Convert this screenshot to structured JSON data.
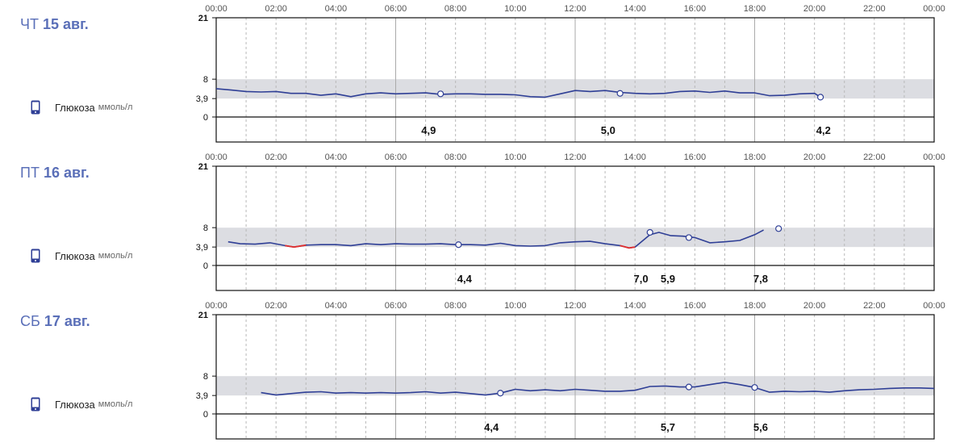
{
  "unit_label": "ммоль/л",
  "series_label": "Глюкоза",
  "colors": {
    "line": "#2f3f96",
    "range": "#dcdde2",
    "low": "#e03030",
    "title": "#5a6fb8"
  },
  "chart_data": [
    {
      "type": "line",
      "dow": "ЧТ",
      "date": "15 авг.",
      "x_ticks": [
        "00:00",
        "02:00",
        "04:00",
        "06:00",
        "08:00",
        "10:00",
        "12:00",
        "14:00",
        "16:00",
        "18:00",
        "20:00",
        "22:00",
        "00:00"
      ],
      "y_ticks": [
        "21",
        "8",
        "3,9",
        "0"
      ],
      "ylim": [
        0,
        21
      ],
      "xlim": [
        0,
        24
      ],
      "target_range": [
        3.9,
        8
      ],
      "series": [
        {
          "points": [
            [
              0,
              6.0
            ],
            [
              0.5,
              5.7
            ],
            [
              1,
              5.4
            ],
            [
              1.5,
              5.3
            ],
            [
              2,
              5.4
            ],
            [
              2.5,
              5.0
            ],
            [
              3,
              5.0
            ],
            [
              3.5,
              4.6
            ],
            [
              4,
              4.9
            ],
            [
              4.5,
              4.3
            ],
            [
              5,
              4.9
            ],
            [
              5.5,
              5.1
            ],
            [
              6,
              4.9
            ],
            [
              6.5,
              5.0
            ],
            [
              7,
              5.1
            ],
            [
              7.5,
              4.8
            ],
            [
              8,
              4.9
            ],
            [
              8.5,
              4.9
            ],
            [
              9,
              4.8
            ],
            [
              9.5,
              4.8
            ],
            [
              10,
              4.7
            ],
            [
              10.5,
              4.3
            ],
            [
              11,
              4.2
            ],
            [
              11.5,
              4.9
            ],
            [
              12,
              5.6
            ],
            [
              12.5,
              5.4
            ],
            [
              13,
              5.6
            ],
            [
              13.5,
              5.2
            ],
            [
              14,
              5.0
            ],
            [
              14.5,
              4.9
            ],
            [
              15,
              5.0
            ],
            [
              15.5,
              5.4
            ],
            [
              16,
              5.5
            ],
            [
              16.5,
              5.2
            ],
            [
              17,
              5.5
            ],
            [
              17.5,
              5.1
            ],
            [
              18,
              5.1
            ],
            [
              18.5,
              4.5
            ],
            [
              19,
              4.6
            ],
            [
              19.5,
              4.9
            ],
            [
              20,
              5.0
            ],
            [
              20.2,
              4.2
            ]
          ]
        }
      ],
      "markers": [
        [
          7.5,
          4.9
        ],
        [
          13.5,
          5.0
        ],
        [
          20.2,
          4.2
        ]
      ],
      "low_segments": [],
      "values": [
        {
          "t": 7.1,
          "label": "4,9"
        },
        {
          "t": 13.1,
          "label": "5,0"
        },
        {
          "t": 20.3,
          "label": "4,2"
        }
      ]
    },
    {
      "type": "line",
      "dow": "ПТ",
      "date": "16 авг.",
      "x_ticks": [
        "00:00",
        "02:00",
        "04:00",
        "06:00",
        "08:00",
        "10:00",
        "12:00",
        "14:00",
        "16:00",
        "18:00",
        "20:00",
        "22:00",
        "00:00"
      ],
      "y_ticks": [
        "21",
        "8",
        "3,9",
        "0"
      ],
      "ylim": [
        0,
        21
      ],
      "xlim": [
        0,
        24
      ],
      "target_range": [
        3.9,
        8
      ],
      "series": [
        {
          "points": [
            [
              0.4,
              5.0
            ],
            [
              0.8,
              4.6
            ],
            [
              1.3,
              4.5
            ],
            [
              1.8,
              4.8
            ],
            [
              2.3,
              4.2
            ],
            [
              2.6,
              3.9
            ],
            [
              3,
              4.3
            ],
            [
              3.5,
              4.4
            ],
            [
              4,
              4.4
            ],
            [
              4.5,
              4.2
            ],
            [
              5,
              4.6
            ],
            [
              5.5,
              4.4
            ],
            [
              6,
              4.6
            ],
            [
              6.5,
              4.5
            ],
            [
              7,
              4.5
            ],
            [
              7.5,
              4.6
            ],
            [
              8,
              4.4
            ],
            [
              8.5,
              4.4
            ],
            [
              9,
              4.3
            ],
            [
              9.5,
              4.7
            ],
            [
              10,
              4.2
            ],
            [
              10.5,
              4.1
            ],
            [
              11,
              4.2
            ],
            [
              11.5,
              4.8
            ],
            [
              12,
              5.0
            ],
            [
              12.5,
              5.1
            ],
            [
              13,
              4.6
            ],
            [
              13.5,
              4.2
            ],
            [
              13.8,
              3.7
            ],
            [
              14,
              3.9
            ],
            [
              14.5,
              6.5
            ],
            [
              14.8,
              7.0
            ],
            [
              15.2,
              6.3
            ],
            [
              15.6,
              6.2
            ],
            [
              16,
              5.9
            ],
            [
              16.5,
              4.8
            ],
            [
              17,
              5.0
            ],
            [
              17.5,
              5.3
            ],
            [
              18,
              6.5
            ],
            [
              18.3,
              7.5
            ]
          ]
        }
      ],
      "markers": [
        [
          8.1,
          4.4
        ],
        [
          14.5,
          7.0
        ],
        [
          15.8,
          5.9
        ],
        [
          18.8,
          7.8
        ]
      ],
      "low_segments": [
        [
          [
            2.3,
            4.2
          ],
          [
            2.6,
            3.9
          ],
          [
            3.0,
            4.3
          ]
        ],
        [
          [
            13.5,
            4.2
          ],
          [
            13.8,
            3.7
          ],
          [
            14.0,
            3.9
          ]
        ]
      ],
      "values": [
        {
          "t": 8.3,
          "label": "4,4"
        },
        {
          "t": 14.2,
          "label": "7,0"
        },
        {
          "t": 15.1,
          "label": "5,9"
        },
        {
          "t": 18.2,
          "label": "7,8"
        }
      ]
    },
    {
      "type": "line",
      "dow": "СБ",
      "date": "17 авг.",
      "x_ticks": [
        "00:00",
        "02:00",
        "04:00",
        "06:00",
        "08:00",
        "10:00",
        "12:00",
        "14:00",
        "16:00",
        "18:00",
        "20:00",
        "22:00",
        "00:00"
      ],
      "y_ticks": [
        "21",
        "8",
        "3,9",
        "0"
      ],
      "ylim": [
        0,
        21
      ],
      "xlim": [
        0,
        24
      ],
      "target_range": [
        3.9,
        8
      ],
      "series": [
        {
          "points": [
            [
              1.5,
              4.5
            ],
            [
              2,
              4.0
            ],
            [
              2.5,
              4.3
            ],
            [
              3,
              4.6
            ],
            [
              3.5,
              4.7
            ],
            [
              4,
              4.4
            ],
            [
              4.5,
              4.5
            ],
            [
              5,
              4.4
            ],
            [
              5.5,
              4.5
            ],
            [
              6,
              4.4
            ],
            [
              6.5,
              4.5
            ],
            [
              7,
              4.7
            ],
            [
              7.5,
              4.4
            ],
            [
              8,
              4.6
            ],
            [
              8.5,
              4.3
            ],
            [
              9,
              4.0
            ],
            [
              9.5,
              4.4
            ],
            [
              10,
              5.2
            ],
            [
              10.5,
              4.9
            ],
            [
              11,
              5.1
            ],
            [
              11.5,
              4.9
            ],
            [
              12,
              5.2
            ],
            [
              12.5,
              5.0
            ],
            [
              13,
              4.8
            ],
            [
              13.5,
              4.8
            ],
            [
              14,
              5.0
            ],
            [
              14.5,
              5.8
            ],
            [
              15,
              5.9
            ],
            [
              15.5,
              5.7
            ],
            [
              16,
              5.7
            ],
            [
              16.5,
              6.2
            ],
            [
              17,
              6.7
            ],
            [
              17.5,
              6.2
            ],
            [
              18,
              5.6
            ],
            [
              18.5,
              4.6
            ],
            [
              19,
              4.8
            ],
            [
              19.5,
              4.7
            ],
            [
              20,
              4.8
            ],
            [
              20.5,
              4.6
            ],
            [
              21,
              4.9
            ],
            [
              21.5,
              5.1
            ],
            [
              22,
              5.2
            ],
            [
              22.5,
              5.4
            ],
            [
              23,
              5.5
            ],
            [
              23.5,
              5.5
            ],
            [
              24,
              5.4
            ]
          ]
        }
      ],
      "markers": [
        [
          9.5,
          4.4
        ],
        [
          15.8,
          5.7
        ],
        [
          18.0,
          5.6
        ]
      ],
      "low_segments": [],
      "values": [
        {
          "t": 9.2,
          "label": "4,4"
        },
        {
          "t": 15.1,
          "label": "5,7"
        },
        {
          "t": 18.2,
          "label": "5,6"
        }
      ]
    }
  ]
}
